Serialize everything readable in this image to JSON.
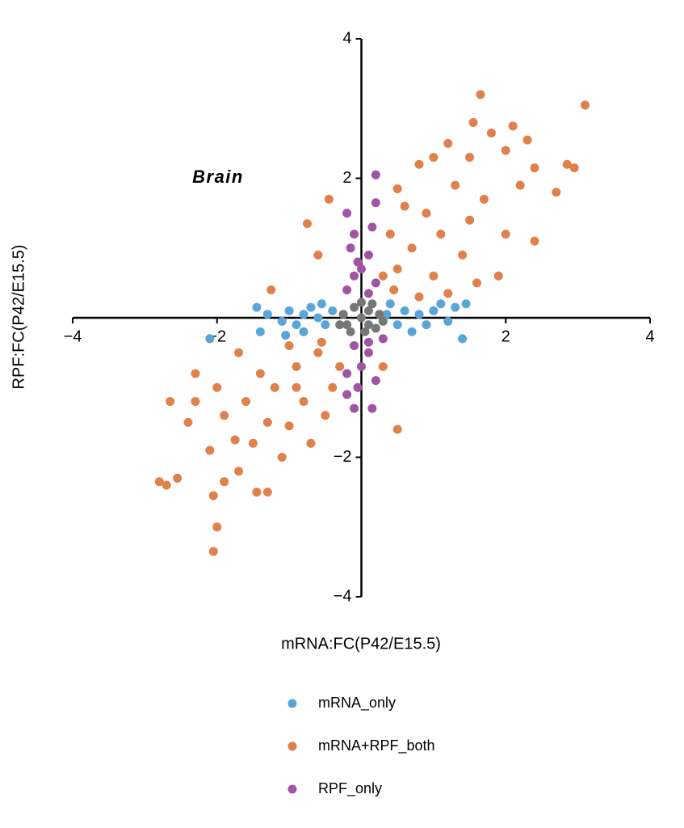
{
  "chart_data": {
    "type": "scatter",
    "annotation": "Brain",
    "x_label": "mRNA:FC(P42/E15.5)",
    "y_label": "RPF:FC(P42/E15.5)",
    "xlim": [
      -4,
      4
    ],
    "ylim": [
      -4,
      4
    ],
    "xticks": [
      {
        "value": -4,
        "label": "−4"
      },
      {
        "value": -2,
        "label": "−2"
      },
      2,
      4
    ],
    "yticks": [
      {
        "value": -4,
        "label": "−4"
      },
      {
        "value": -2,
        "label": "−2"
      },
      2,
      4
    ],
    "series": [
      {
        "name": "mRNA_only",
        "color": "#5aa5d8",
        "x": [
          -1.45,
          -1.3,
          -1.1,
          -1.0,
          -0.9,
          -0.8,
          -0.7,
          -0.6,
          -0.5,
          -1.05,
          -0.8,
          -2.1,
          -1.4,
          -0.4,
          0.35,
          0.5,
          0.6,
          0.8,
          1.0,
          1.1,
          1.3,
          1.45,
          1.4,
          0.7,
          0.9,
          1.2,
          0.4,
          -0.55
        ],
        "values": [
          0.15,
          0.05,
          -0.05,
          0.1,
          -0.1,
          0.05,
          0.15,
          0.0,
          -0.1,
          -0.25,
          -0.2,
          -0.3,
          -0.2,
          0.1,
          0.05,
          -0.1,
          0.1,
          0.05,
          0.1,
          0.2,
          0.15,
          0.2,
          -0.3,
          -0.2,
          -0.1,
          -0.05,
          0.2,
          0.2
        ]
      },
      {
        "name": "mRNA+RPF_both",
        "color": "#e0804a",
        "x": [
          1.65,
          3.1,
          1.55,
          1.8,
          2.1,
          2.3,
          2.85,
          2.95,
          2.7,
          2.4,
          2.0,
          1.5,
          1.2,
          1.0,
          0.8,
          0.5,
          0.6,
          1.3,
          1.7,
          2.0,
          2.4,
          1.9,
          1.6,
          1.4,
          1.1,
          0.9,
          0.7,
          0.5,
          0.4,
          0.3,
          0.45,
          1.0,
          1.2,
          0.8,
          1.5,
          2.2,
          -0.45,
          -0.75,
          -1.25,
          -0.6,
          0.5,
          0.3,
          -2.8,
          -2.7,
          -2.55,
          -2.05,
          -2.0,
          -2.05,
          -1.45,
          -1.3,
          -1.7,
          -1.9,
          -2.4,
          -2.65,
          -2.3,
          -2.1,
          -1.75,
          -1.5,
          -1.3,
          -1.0,
          -0.7,
          -0.5,
          -0.4,
          -0.3,
          -0.6,
          -0.9,
          -1.2,
          -1.6,
          -1.9,
          -2.0,
          -1.7,
          -1.0,
          -0.8,
          -1.4,
          -1.1,
          -0.9,
          -0.55,
          -2.3
        ],
        "values": [
          3.2,
          3.05,
          2.8,
          2.65,
          2.75,
          2.55,
          2.2,
          2.15,
          1.8,
          2.15,
          2.4,
          2.3,
          2.5,
          2.3,
          2.2,
          1.85,
          1.6,
          1.9,
          1.7,
          1.2,
          1.1,
          0.6,
          0.5,
          0.9,
          1.2,
          1.5,
          1.0,
          0.7,
          1.2,
          0.6,
          0.4,
          0.6,
          0.35,
          0.3,
          1.4,
          1.9,
          1.7,
          1.35,
          0.4,
          0.9,
          -1.6,
          -0.7,
          -2.35,
          -2.4,
          -2.3,
          -2.55,
          -3.0,
          -3.35,
          -2.5,
          -2.5,
          -2.2,
          -2.35,
          -1.5,
          -1.2,
          -0.8,
          -1.9,
          -1.75,
          -1.8,
          -1.5,
          -1.55,
          -1.8,
          -1.4,
          -1.0,
          -0.7,
          -0.5,
          -0.7,
          -1.0,
          -1.2,
          -1.4,
          -1.0,
          -0.5,
          -0.4,
          -1.2,
          -0.8,
          -2.0,
          -1.0,
          -0.35,
          -1.2
        ]
      },
      {
        "name": "RPF_only",
        "color": "#a054a4",
        "x": [
          0.2,
          0.2,
          0.15,
          -0.2,
          -0.1,
          -0.15,
          0.1,
          0.0,
          -0.1,
          0.2,
          0.1,
          -0.2,
          -0.05,
          -0.1,
          0.1,
          0.0,
          -0.2,
          0.2,
          -0.05,
          0.15,
          -0.1,
          -0.2,
          0.1,
          0.3
        ],
        "values": [
          2.05,
          1.65,
          1.3,
          1.5,
          1.2,
          1.0,
          0.9,
          0.7,
          0.6,
          0.5,
          0.35,
          0.4,
          0.8,
          -0.4,
          -0.5,
          -0.7,
          -0.8,
          -0.9,
          -1.0,
          -1.3,
          -1.3,
          -1.1,
          -0.35,
          -0.3
        ]
      },
      {
        "color": "#777777",
        "x": [
          -0.2,
          0,
          0.1,
          0.2,
          -0.1,
          0.25,
          -0.25,
          0.05,
          0.15,
          -0.15,
          0.3,
          -0.3,
          0.0,
          0.1
        ],
        "values": [
          -0.1,
          0,
          0.1,
          -0.15,
          0.15,
          0.05,
          0.05,
          -0.2,
          0.2,
          -0.2,
          -0.05,
          -0.1,
          0.22,
          -0.1
        ]
      }
    ]
  }
}
